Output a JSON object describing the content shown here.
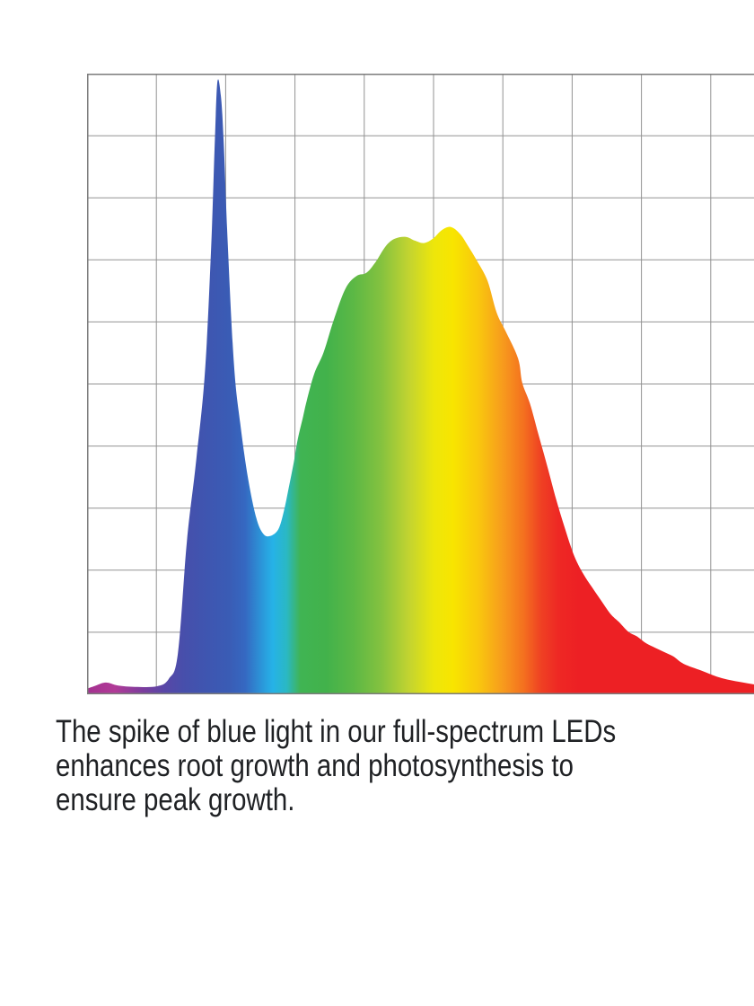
{
  "chart_data": {
    "type": "area",
    "title": "",
    "xlabel": "",
    "ylabel": "",
    "x_tick_labels": [],
    "y_tick_labels": [],
    "axis_ranges": {
      "x_fraction": [
        0,
        1
      ],
      "intensity_fraction": [
        0,
        1
      ]
    },
    "grid": {
      "columns": 10,
      "rows": 10,
      "on": true,
      "line_color": "#929292",
      "border_color": "#7b7b7b"
    },
    "legend": "none",
    "peaks": {
      "blue_spike": {
        "x_fraction": 0.188,
        "intensity": 0.986
      },
      "valley": {
        "x_fraction": 0.264,
        "intensity": 0.255
      },
      "broad_peak": {
        "x_fraction": 0.525,
        "intensity": 0.753
      }
    },
    "points": [
      [
        0.0,
        0.009
      ],
      [
        0.01,
        0.013
      ],
      [
        0.027,
        0.019
      ],
      [
        0.045,
        0.014
      ],
      [
        0.069,
        0.012
      ],
      [
        0.101,
        0.013
      ],
      [
        0.118,
        0.025
      ],
      [
        0.131,
        0.065
      ],
      [
        0.144,
        0.246
      ],
      [
        0.157,
        0.372
      ],
      [
        0.17,
        0.517
      ],
      [
        0.179,
        0.719
      ],
      [
        0.184,
        0.878
      ],
      [
        0.188,
        0.986
      ],
      [
        0.193,
        0.965
      ],
      [
        0.197,
        0.893
      ],
      [
        0.203,
        0.727
      ],
      [
        0.212,
        0.531
      ],
      [
        0.221,
        0.437
      ],
      [
        0.232,
        0.35
      ],
      [
        0.244,
        0.285
      ],
      [
        0.254,
        0.259
      ],
      [
        0.264,
        0.255
      ],
      [
        0.276,
        0.266
      ],
      [
        0.284,
        0.295
      ],
      [
        0.291,
        0.333
      ],
      [
        0.298,
        0.372
      ],
      [
        0.304,
        0.411
      ],
      [
        0.311,
        0.444
      ],
      [
        0.317,
        0.473
      ],
      [
        0.328,
        0.517
      ],
      [
        0.341,
        0.55
      ],
      [
        0.356,
        0.603
      ],
      [
        0.373,
        0.654
      ],
      [
        0.389,
        0.674
      ],
      [
        0.403,
        0.679
      ],
      [
        0.416,
        0.696
      ],
      [
        0.431,
        0.722
      ],
      [
        0.444,
        0.734
      ],
      [
        0.46,
        0.737
      ],
      [
        0.473,
        0.731
      ],
      [
        0.486,
        0.727
      ],
      [
        0.499,
        0.734
      ],
      [
        0.512,
        0.748
      ],
      [
        0.525,
        0.753
      ],
      [
        0.538,
        0.742
      ],
      [
        0.55,
        0.722
      ],
      [
        0.563,
        0.698
      ],
      [
        0.578,
        0.666
      ],
      [
        0.591,
        0.615
      ],
      [
        0.604,
        0.585
      ],
      [
        0.622,
        0.541
      ],
      [
        0.628,
        0.502
      ],
      [
        0.639,
        0.469
      ],
      [
        0.651,
        0.42
      ],
      [
        0.664,
        0.368
      ],
      [
        0.677,
        0.314
      ],
      [
        0.69,
        0.266
      ],
      [
        0.703,
        0.223
      ],
      [
        0.716,
        0.194
      ],
      [
        0.729,
        0.172
      ],
      [
        0.742,
        0.151
      ],
      [
        0.755,
        0.13
      ],
      [
        0.768,
        0.116
      ],
      [
        0.781,
        0.101
      ],
      [
        0.794,
        0.093
      ],
      [
        0.807,
        0.082
      ],
      [
        0.82,
        0.075
      ],
      [
        0.833,
        0.068
      ],
      [
        0.846,
        0.061
      ],
      [
        0.861,
        0.049
      ],
      [
        0.887,
        0.038
      ],
      [
        0.916,
        0.026
      ],
      [
        0.947,
        0.019
      ],
      [
        0.973,
        0.014
      ],
      [
        1.0,
        0.01
      ]
    ],
    "gradient_stops": [
      [
        0.0,
        "#a43190"
      ],
      [
        0.04,
        "#b13a97"
      ],
      [
        0.08,
        "#7c3d9d"
      ],
      [
        0.112,
        "#5847a7"
      ],
      [
        0.14,
        "#474fab"
      ],
      [
        0.17,
        "#3f55b0"
      ],
      [
        0.205,
        "#3a5cb5"
      ],
      [
        0.228,
        "#3568c1"
      ],
      [
        0.252,
        "#2b96d9"
      ],
      [
        0.268,
        "#26b2e7"
      ],
      [
        0.288,
        "#2ab8c4"
      ],
      [
        0.308,
        "#40b453"
      ],
      [
        0.345,
        "#42b24b"
      ],
      [
        0.385,
        "#5cb845"
      ],
      [
        0.425,
        "#85c23f"
      ],
      [
        0.465,
        "#c3d430"
      ],
      [
        0.5,
        "#ede60b"
      ],
      [
        0.528,
        "#f8e500"
      ],
      [
        0.565,
        "#f9c70e"
      ],
      [
        0.6,
        "#f79b1d"
      ],
      [
        0.63,
        "#f4701f"
      ],
      [
        0.655,
        "#ef4123"
      ],
      [
        0.68,
        "#ee2824"
      ],
      [
        0.71,
        "#ed2024"
      ],
      [
        1.0,
        "#ed2024"
      ]
    ]
  },
  "caption": {
    "text": "The spike of blue light in our full-spectrum LEDs enhances root growth and photosynthesis to ensure peak growth.",
    "lines": [
      "The spike of blue light in our full-spectrum LEDs",
      "enhances root growth and photosynthesis to",
      "ensure peak growth."
    ],
    "color": "#1f2124"
  },
  "page": {
    "background_color": "#ffffff"
  }
}
